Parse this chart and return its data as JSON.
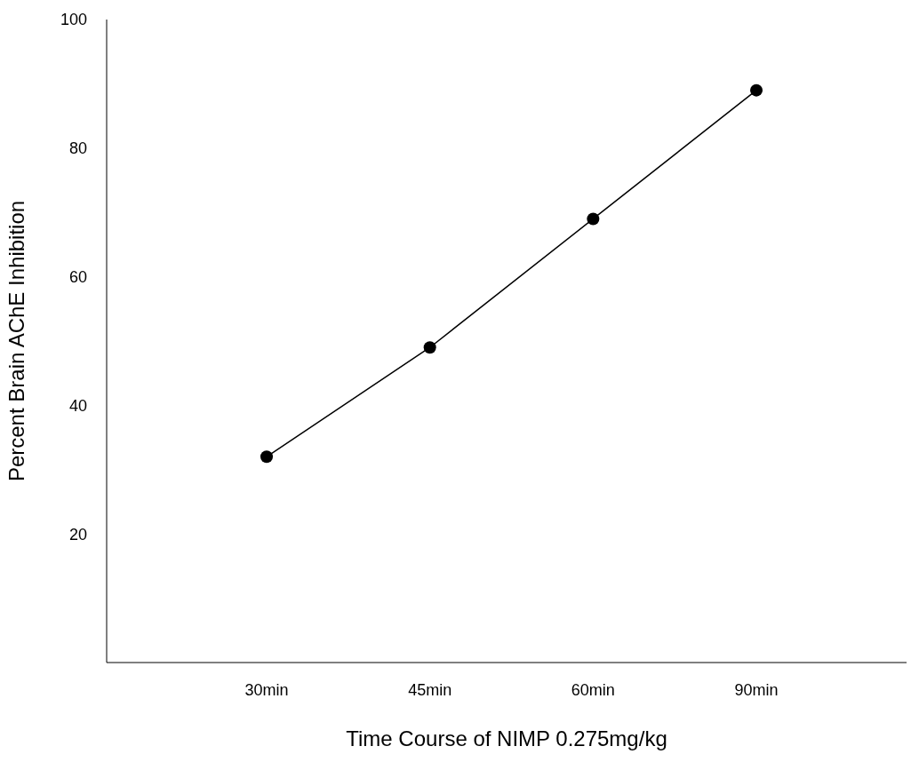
{
  "chart_data": {
    "type": "line",
    "xlabel": "Time Course of NIMP 0.275mg/kg",
    "ylabel": "Percent Brain AChE Inhibition",
    "categories": [
      "30min",
      "45min",
      "60min",
      "90min"
    ],
    "series": [
      {
        "color": "#000000",
        "values": [
          32,
          49,
          69,
          89
        ]
      }
    ],
    "ylim": [
      0,
      100
    ],
    "yticks": [
      20,
      40,
      60,
      80,
      100
    ],
    "grid": false,
    "legend": false,
    "marker": "circle",
    "line_style": "solid"
  }
}
